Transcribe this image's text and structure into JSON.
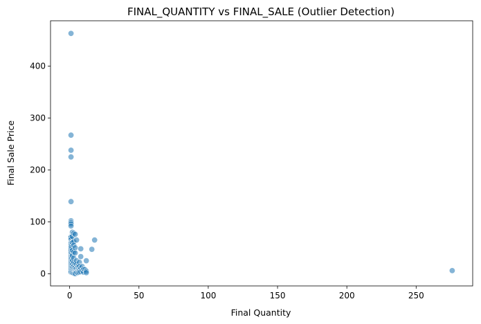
{
  "chart_data": {
    "type": "scatter",
    "title": "FINAL_QUANTITY vs FINAL_SALE (Outlier Detection)",
    "xlabel": "Final Quantity",
    "ylabel": "Final Sale Price",
    "xlim": [
      -13.8,
      290.8
    ],
    "ylim": [
      -23.5,
      487.4
    ],
    "xticks": [
      0,
      50,
      100,
      150,
      200,
      250
    ],
    "yticks": [
      0,
      100,
      200,
      300,
      400
    ],
    "grid": false,
    "point_color": "#1f77b4",
    "point_opacity": 0.55,
    "x": [
      1,
      1,
      1,
      1,
      1,
      1,
      1,
      1,
      1,
      1,
      1,
      1,
      1,
      1,
      1,
      1,
      1,
      1,
      1,
      1,
      1,
      1,
      1,
      1,
      1,
      1,
      1,
      1,
      1,
      1,
      1,
      1,
      1,
      2,
      2,
      2,
      2,
      2,
      2,
      2,
      2,
      2,
      2,
      3,
      3,
      3,
      3,
      3,
      3,
      3,
      3,
      3,
      3,
      4,
      4,
      4,
      4,
      4,
      4,
      4,
      4,
      4,
      5,
      5,
      5,
      5,
      5,
      6,
      6,
      6,
      6,
      6,
      7,
      7,
      7,
      7,
      8,
      8,
      8,
      8,
      9,
      9,
      10,
      10,
      11,
      12,
      12,
      12,
      16,
      18,
      276
    ],
    "y": [
      463,
      267,
      238,
      225,
      139,
      102,
      99,
      96,
      92,
      72,
      71,
      70,
      66,
      60,
      58,
      55,
      52,
      50,
      47,
      44,
      40,
      36,
      33,
      30,
      27,
      24,
      21,
      18,
      15,
      12,
      9,
      6,
      3,
      80,
      72,
      60,
      45,
      35,
      25,
      18,
      12,
      6,
      2,
      78,
      62,
      55,
      42,
      30,
      22,
      15,
      10,
      5,
      1,
      76,
      50,
      40,
      20,
      12,
      8,
      4,
      2,
      0,
      65,
      25,
      18,
      10,
      3,
      15,
      12,
      8,
      5,
      2,
      22,
      14,
      7,
      3,
      48,
      33,
      11,
      4,
      14,
      6,
      9,
      3,
      8,
      25,
      5,
      2,
      47,
      65,
      6
    ]
  }
}
